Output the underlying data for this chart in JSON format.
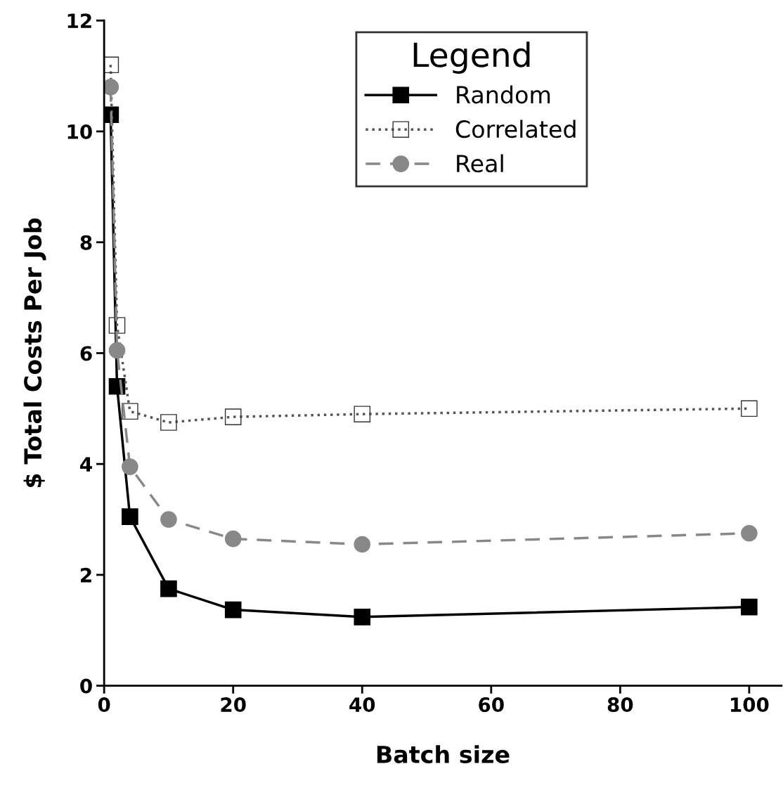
{
  "chart_data": {
    "type": "line",
    "xlabel": "Batch size",
    "ylabel": "$ Total Costs Per Job",
    "x": [
      1,
      2,
      4,
      10,
      20,
      40,
      100
    ],
    "series": [
      {
        "name": "Random",
        "color": "#000000",
        "marker": "square",
        "line_style": "solid",
        "values": [
          10.3,
          5.4,
          3.05,
          1.75,
          1.37,
          1.24,
          1.42
        ]
      },
      {
        "name": "Correlated",
        "color": "#555555",
        "marker": "square",
        "line_style": "dotted",
        "values": [
          11.2,
          6.5,
          4.95,
          4.75,
          4.85,
          4.9,
          5.0
        ]
      },
      {
        "name": "Real",
        "color": "#888888",
        "marker": "circle",
        "line_style": "dashed",
        "values": [
          10.8,
          6.05,
          3.95,
          3.0,
          2.65,
          2.55,
          2.75
        ]
      }
    ],
    "xlim": [
      0,
      105
    ],
    "xticks": [
      0,
      20,
      40,
      60,
      80,
      100
    ],
    "ylim": [
      0,
      12
    ],
    "yticks": [
      0,
      2,
      4,
      6,
      8,
      10,
      12
    ],
    "legend": "top right",
    "legend_title": "Legend",
    "grid": false
  }
}
